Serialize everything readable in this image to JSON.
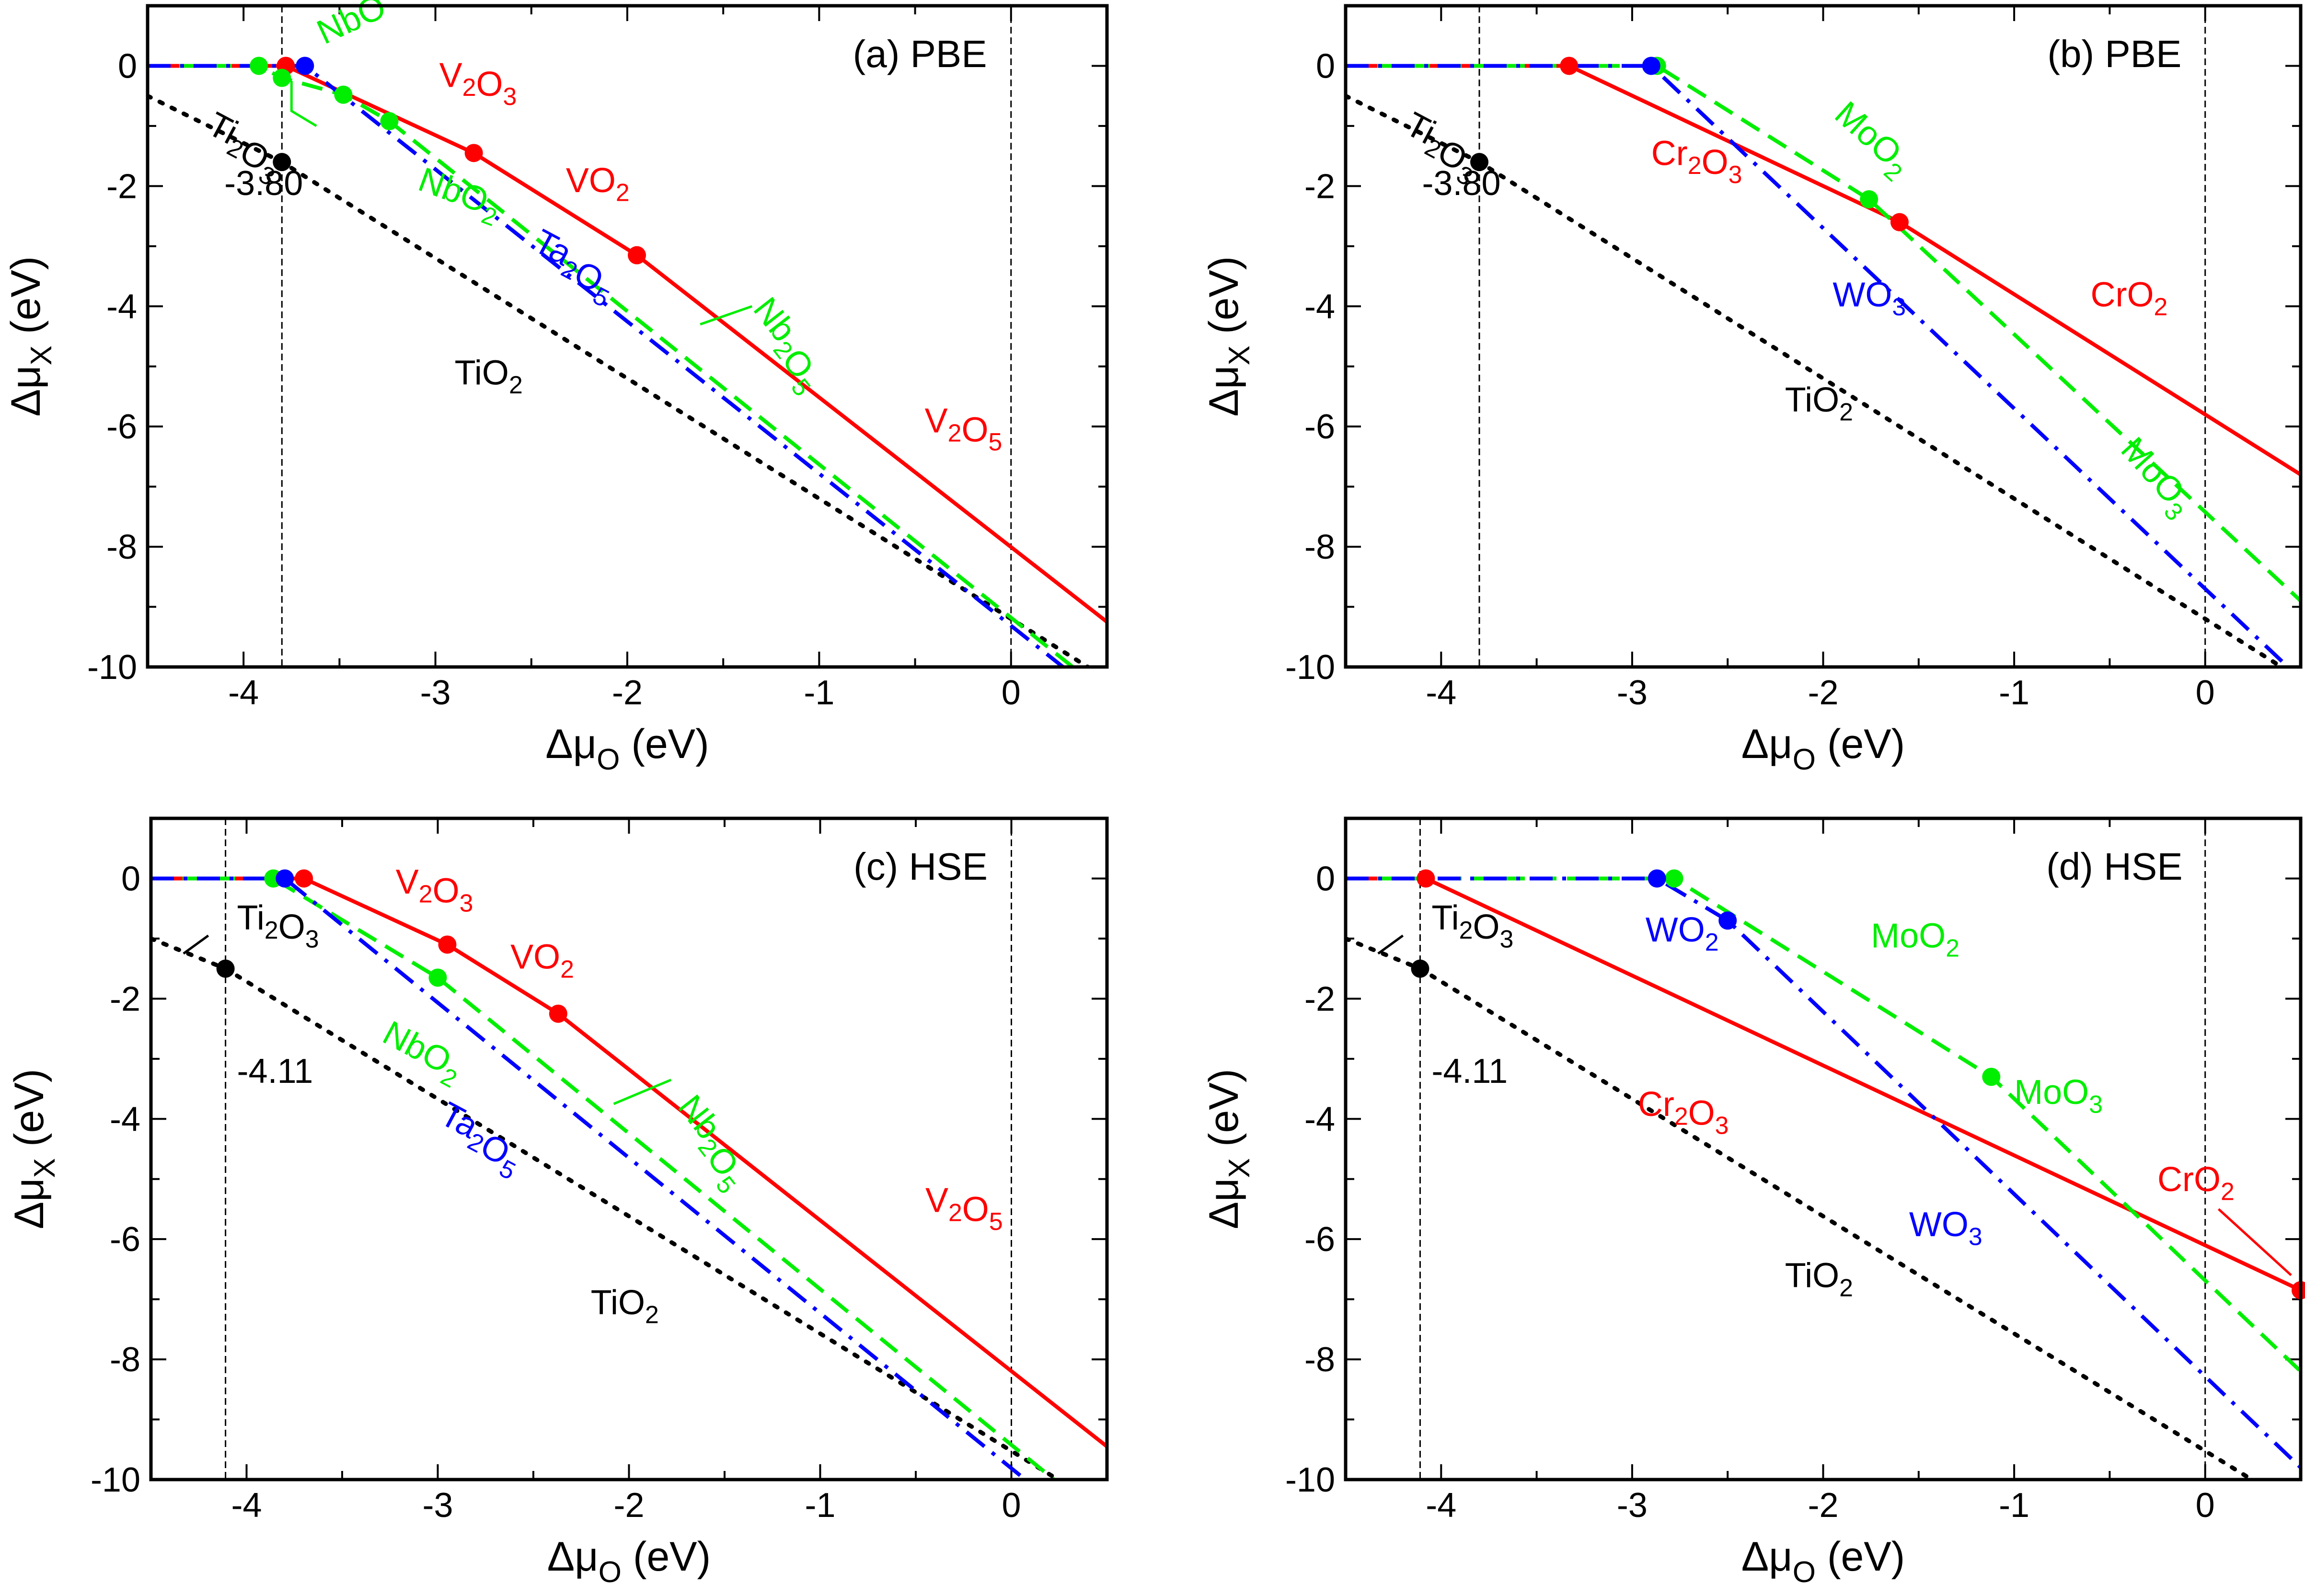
{
  "figure": {
    "colors": {
      "V": "#ff0000",
      "Nb": "#00ee00",
      "Ta": "#0000ff",
      "Cr": "#ff0000",
      "Mo": "#00ee00",
      "W": "#0000ff",
      "Ti": "#000000"
    }
  },
  "chart_data": [
    {
      "type": "line",
      "panel": "a",
      "title": "(a) PBE",
      "xlabel": "Δμ_O (eV)",
      "ylabel": "Δμ_X (eV)",
      "xlim": [
        -4.5,
        0.5
      ],
      "ylim": [
        -10,
        1
      ],
      "xticks": [
        -4,
        -3,
        -2,
        -1,
        0
      ],
      "yticks": [
        0,
        -2,
        -4,
        -6,
        -8,
        -10
      ],
      "vlines": [
        -3.8,
        0
      ],
      "vline_annotation": "-3.80",
      "series": [
        {
          "name": "Ti",
          "color": "#000000",
          "style": "dotted",
          "x": [
            -4.5,
            -3.8,
            0.5
          ],
          "y": [
            -0.5,
            -1.6,
            -10.2
          ]
        },
        {
          "name": "V",
          "color": "#ff0000",
          "style": "solid",
          "x": [
            -4.5,
            -3.78,
            -2.8,
            -1.95,
            0.5
          ],
          "y": [
            0,
            0,
            -1.45,
            -3.15,
            -9.25
          ],
          "markers": [
            [
              -3.78,
              0
            ],
            [
              -2.8,
              -1.45
            ],
            [
              -1.95,
              -3.15
            ]
          ]
        },
        {
          "name": "Nb",
          "color": "#00ee00",
          "style": "dashed",
          "x": [
            -4.5,
            -3.92,
            -3.8,
            -3.48,
            -3.24,
            0.4
          ],
          "y": [
            0,
            0,
            -0.2,
            -0.48,
            -0.92,
            -10.2
          ],
          "markers": [
            [
              -3.92,
              0
            ],
            [
              -3.8,
              -0.2
            ],
            [
              -3.48,
              -0.48
            ],
            [
              -3.24,
              -0.92
            ]
          ]
        },
        {
          "name": "Ta",
          "color": "#0000ff",
          "style": "dashdot",
          "x": [
            -4.5,
            -3.68,
            0.35
          ],
          "y": [
            0,
            0,
            -10.2
          ],
          "markers": [
            [
              -3.68,
              0
            ]
          ]
        }
      ],
      "labels": [
        {
          "text": "NbO",
          "color": "#00ee00",
          "x": -3.58,
          "y": 0.35,
          "rot": -25
        },
        {
          "text": "Ti₂O₃",
          "color": "#000000",
          "x": -4.2,
          "y": -1.1,
          "rot": 28
        },
        {
          "text": "-3.80",
          "color": "#000000",
          "x": -4.1,
          "y": -2.15,
          "rot": 0
        },
        {
          "text": "V₂O₃",
          "color": "#ff0000",
          "x": -2.98,
          "y": -0.35,
          "rot": 0
        },
        {
          "text": "VO₂",
          "color": "#ff0000",
          "x": -2.32,
          "y": -2.1,
          "rot": 0
        },
        {
          "text": "NbO₂",
          "color": "#00ee00",
          "x": -3.1,
          "y": -2.05,
          "rot": 20
        },
        {
          "text": "Ta₂O₅",
          "color": "#0000ff",
          "x": -2.5,
          "y": -3.05,
          "rot": 28
        },
        {
          "text": "Nb₂O₅",
          "color": "#00ee00",
          "x": -1.35,
          "y": -4.05,
          "rot": 52
        },
        {
          "text": "TiO₂",
          "color": "#000000",
          "x": -2.9,
          "y": -5.3,
          "rot": 0
        },
        {
          "text": "V₂O₅",
          "color": "#ff0000",
          "x": -0.45,
          "y": -6.1,
          "rot": 0
        }
      ],
      "leaders": [
        {
          "color": "#00ee00",
          "x": [
            -3.75,
            -3.75,
            -3.62
          ],
          "y": [
            -0.25,
            -0.75,
            -1.0
          ]
        },
        {
          "color": "#00ee00",
          "x": [
            -1.62,
            -1.35
          ],
          "y": [
            -4.3,
            -4.0
          ]
        }
      ]
    },
    {
      "type": "line",
      "panel": "b",
      "title": "(b) PBE",
      "xlabel": "Δμ_O (eV)",
      "ylabel": "Δμ_X (eV)",
      "xlim": [
        -4.5,
        0.5
      ],
      "ylim": [
        -10,
        1
      ],
      "xticks": [
        -4,
        -3,
        -2,
        -1,
        0
      ],
      "yticks": [
        0,
        -2,
        -4,
        -6,
        -8,
        -10
      ],
      "vlines": [
        -3.8,
        0
      ],
      "vline_annotation": "-3.80",
      "series": [
        {
          "name": "Ti",
          "color": "#000000",
          "style": "dotted",
          "x": [
            -4.5,
            -3.8,
            0.5
          ],
          "y": [
            -0.5,
            -1.6,
            -10.2
          ]
        },
        {
          "name": "Cr",
          "color": "#ff0000",
          "style": "solid",
          "x": [
            -4.5,
            -3.33,
            -1.6,
            0.5
          ],
          "y": [
            0,
            0,
            -2.6,
            -6.8
          ],
          "markers": [
            [
              -3.33,
              0
            ],
            [
              -1.6,
              -2.6
            ]
          ]
        },
        {
          "name": "Mo",
          "color": "#00ee00",
          "style": "dashed",
          "x": [
            -4.5,
            -2.87,
            -1.76,
            0.5
          ],
          "y": [
            0,
            0,
            -2.22,
            -8.9
          ],
          "markers": [
            [
              -2.87,
              0
            ],
            [
              -1.76,
              -2.22
            ]
          ]
        },
        {
          "name": "W",
          "color": "#0000ff",
          "style": "dashdot",
          "x": [
            -4.5,
            -2.9,
            0.5
          ],
          "y": [
            0,
            0,
            -10.2
          ],
          "markers": [
            [
              -2.9,
              0
            ]
          ]
        }
      ],
      "labels": [
        {
          "text": "Ti₂O₃",
          "color": "#000000",
          "x": -4.2,
          "y": -1.1,
          "rot": 28
        },
        {
          "text": "-3.80",
          "color": "#000000",
          "x": -4.1,
          "y": -2.15,
          "rot": 0
        },
        {
          "text": "Cr₂O₃",
          "color": "#ff0000",
          "x": -2.9,
          "y": -1.65,
          "rot": 0
        },
        {
          "text": "MoO₂",
          "color": "#00ee00",
          "x": -1.95,
          "y": -0.85,
          "rot": 42
        },
        {
          "text": "CrO₂",
          "color": "#ff0000",
          "x": -0.6,
          "y": -4.0,
          "rot": 0
        },
        {
          "text": "WO₃",
          "color": "#0000ff",
          "x": -1.95,
          "y": -4.0,
          "rot": 0
        },
        {
          "text": "TiO₂",
          "color": "#000000",
          "x": -2.2,
          "y": -5.75,
          "rot": 0
        },
        {
          "text": "MoO₃",
          "color": "#00ee00",
          "x": -0.45,
          "y": -6.4,
          "rot": 48
        }
      ],
      "leaders": []
    },
    {
      "type": "line",
      "panel": "c",
      "title": "(c) HSE",
      "xlabel": "Δμ_O (eV)",
      "ylabel": "Δμ_X (eV)",
      "xlim": [
        -4.5,
        0.5
      ],
      "ylim": [
        -10,
        1
      ],
      "xticks": [
        -4,
        -3,
        -2,
        -1,
        0
      ],
      "yticks": [
        0,
        -2,
        -4,
        -6,
        -8,
        -10
      ],
      "vlines": [
        -4.11,
        0
      ],
      "vline_annotation": "-4.11",
      "series": [
        {
          "name": "Ti",
          "color": "#000000",
          "style": "dotted",
          "x": [
            -4.5,
            -4.11,
            0.5
          ],
          "y": [
            -1.0,
            -1.5,
            -10.5
          ]
        },
        {
          "name": "V",
          "color": "#ff0000",
          "style": "solid",
          "x": [
            -4.5,
            -3.7,
            -2.95,
            -2.37,
            0.5
          ],
          "y": [
            0,
            0,
            -1.1,
            -2.25,
            -9.45
          ],
          "markers": [
            [
              -3.7,
              0
            ],
            [
              -2.95,
              -1.1
            ],
            [
              -2.37,
              -2.25
            ]
          ]
        },
        {
          "name": "Nb",
          "color": "#00ee00",
          "style": "dashed",
          "x": [
            -4.5,
            -3.86,
            -3.0,
            0.3
          ],
          "y": [
            0,
            0,
            -1.65,
            -10.2
          ],
          "markers": [
            [
              -3.86,
              0
            ],
            [
              -3.0,
              -1.65
            ]
          ]
        },
        {
          "name": "Ta",
          "color": "#0000ff",
          "style": "dashdot",
          "x": [
            -4.5,
            -3.8,
            0.15
          ],
          "y": [
            0,
            0,
            -10.2
          ],
          "markers": [
            [
              -3.8,
              0
            ]
          ]
        }
      ],
      "labels": [
        {
          "text": "Ti₂O₃",
          "color": "#000000",
          "x": -4.05,
          "y": -0.85,
          "rot": 0
        },
        {
          "text": "-4.11",
          "color": "#000000",
          "x": -4.05,
          "y": -3.4,
          "rot": 0
        },
        {
          "text": "V₂O₃",
          "color": "#ff0000",
          "x": -3.22,
          "y": -0.25,
          "rot": 0
        },
        {
          "text": "VO₂",
          "color": "#ff0000",
          "x": -2.62,
          "y": -1.5,
          "rot": 0
        },
        {
          "text": "NbO₂",
          "color": "#00ee00",
          "x": -3.3,
          "y": -2.7,
          "rot": 28
        },
        {
          "text": "Ta₂O₅",
          "color": "#0000ff",
          "x": -3.0,
          "y": -4.05,
          "rot": 28
        },
        {
          "text": "Nb₂O₅",
          "color": "#00ee00",
          "x": -1.75,
          "y": -3.8,
          "rot": 52
        },
        {
          "text": "TiO₂",
          "color": "#000000",
          "x": -2.2,
          "y": -7.25,
          "rot": 0
        },
        {
          "text": "V₂O₅",
          "color": "#ff0000",
          "x": -0.45,
          "y": -5.55,
          "rot": 0
        }
      ],
      "leaders": [
        {
          "color": "#000000",
          "x": [
            -4.33,
            -4.2
          ],
          "y": [
            -1.25,
            -0.95
          ]
        },
        {
          "color": "#00ee00",
          "x": [
            -2.08,
            -1.78
          ],
          "y": [
            -3.75,
            -3.35
          ]
        }
      ]
    },
    {
      "type": "line",
      "panel": "d",
      "title": "(d) HSE",
      "xlabel": "Δμ_O (eV)",
      "ylabel": "Δμ_X (eV)",
      "xlim": [
        -4.5,
        0.5
      ],
      "ylim": [
        -10,
        1
      ],
      "xticks": [
        -4,
        -3,
        -2,
        -1,
        0
      ],
      "yticks": [
        0,
        -2,
        -4,
        -6,
        -8,
        -10
      ],
      "vlines": [
        -4.11,
        0
      ],
      "vline_annotation": "-4.11",
      "series": [
        {
          "name": "Ti",
          "color": "#000000",
          "style": "dotted",
          "x": [
            -4.5,
            -4.11,
            0.5
          ],
          "y": [
            -1.0,
            -1.5,
            -10.5
          ]
        },
        {
          "name": "Cr",
          "color": "#ff0000",
          "style": "solid",
          "x": [
            -4.5,
            -4.08,
            0.5
          ],
          "y": [
            0,
            0,
            -6.85
          ],
          "markers": [
            [
              -4.08,
              0
            ],
            [
              0.5,
              -6.85
            ]
          ]
        },
        {
          "name": "Mo",
          "color": "#00ee00",
          "style": "dashed",
          "x": [
            -4.5,
            -2.78,
            -1.12,
            0.5
          ],
          "y": [
            0,
            0,
            -3.3,
            -8.2
          ],
          "markers": [
            [
              -2.78,
              0
            ],
            [
              -1.12,
              -3.3
            ]
          ]
        },
        {
          "name": "W",
          "color": "#0000ff",
          "style": "dashdot",
          "x": [
            -4.5,
            -2.87,
            -2.5,
            0.5
          ],
          "y": [
            0,
            0,
            -0.7,
            -9.8
          ],
          "markers": [
            [
              -2.87,
              0
            ],
            [
              -2.5,
              -0.7
            ]
          ]
        }
      ],
      "labels": [
        {
          "text": "Ti₂O₃",
          "color": "#000000",
          "x": -4.05,
          "y": -0.85,
          "rot": 0
        },
        {
          "text": "-4.11",
          "color": "#000000",
          "x": -4.05,
          "y": -3.4,
          "rot": 0
        },
        {
          "text": "WO₂",
          "color": "#0000ff",
          "x": -2.93,
          "y": -1.05,
          "rot": 0
        },
        {
          "text": "MoO₂",
          "color": "#00ee00",
          "x": -1.75,
          "y": -1.15,
          "rot": 0
        },
        {
          "text": "Cr₂O₃",
          "color": "#ff0000",
          "x": -2.97,
          "y": -3.95,
          "rot": 0
        },
        {
          "text": "MoO₃",
          "color": "#00ee00",
          "x": -1.0,
          "y": -3.75,
          "rot": 0
        },
        {
          "text": "CrO₂",
          "color": "#ff0000",
          "x": -0.25,
          "y": -5.2,
          "rot": 0
        },
        {
          "text": "WO₃",
          "color": "#0000ff",
          "x": -1.55,
          "y": -5.95,
          "rot": 0
        },
        {
          "text": "TiO₂",
          "color": "#000000",
          "x": -2.2,
          "y": -6.8,
          "rot": 0
        }
      ],
      "leaders": [
        {
          "color": "#000000",
          "x": [
            -4.33,
            -4.2
          ],
          "y": [
            -1.25,
            -0.95
          ]
        },
        {
          "color": "#ff0000",
          "x": [
            0.07,
            0.45
          ],
          "y": [
            -5.5,
            -6.6
          ]
        }
      ]
    }
  ]
}
